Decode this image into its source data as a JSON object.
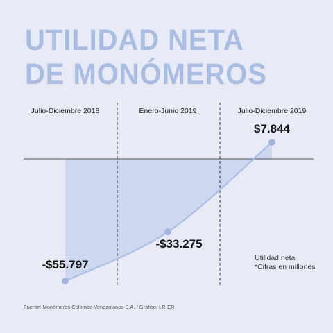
{
  "title_lines": [
    "UTILIDAD NETA",
    "DE MONÓMEROS"
  ],
  "note": {
    "line1": "Utilidad neta",
    "line2": "*Cifras en millones"
  },
  "source": "Fuente: Monómeros Colombo Venezolanos S.A. / Gráfico: LR-ER",
  "colors": {
    "background": "#e8ebf6",
    "title": "#a9bde3",
    "line": "#aec2e8",
    "fill": "#c9d4ee",
    "point": "#a3b6e0"
  },
  "chart_data": {
    "type": "area",
    "title": "UTILIDAD NETA DE MONÓMEROS",
    "categories": [
      "Julio-Diciembre 2018",
      "Enero-Junio 2019",
      "Julio-Diciembre 2019"
    ],
    "value_labels": [
      "-$55.797",
      "-$33.275",
      "$7.844"
    ],
    "series": [
      {
        "name": "Utilidad neta",
        "values": [
          -55797,
          -33275,
          7844
        ]
      }
    ],
    "unit": "*Cifras en millones",
    "ylim": [
      -55797,
      7844
    ],
    "grid": false
  }
}
